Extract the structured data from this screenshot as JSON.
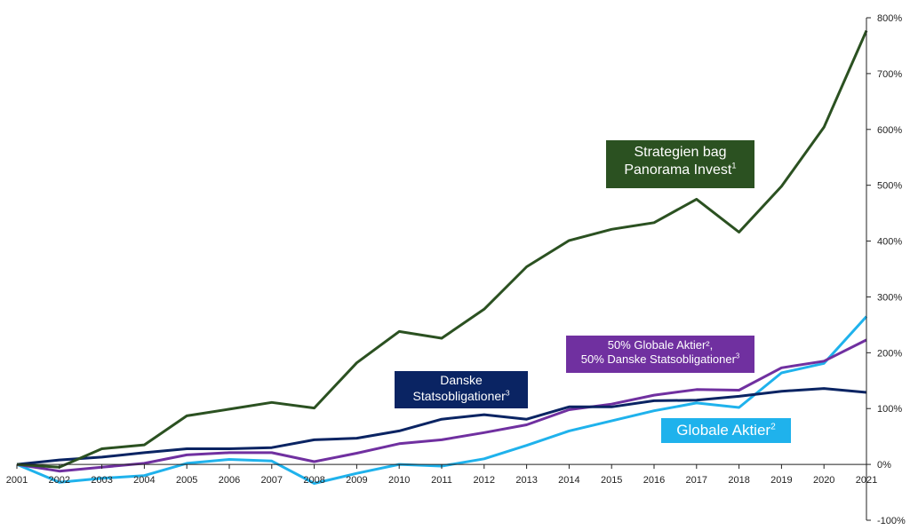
{
  "chart_data": {
    "type": "line",
    "x": [
      "2001",
      "2002",
      "2003",
      "2004",
      "2005",
      "2006",
      "2007",
      "2008",
      "2009",
      "2010",
      "2011",
      "2012",
      "2013",
      "2014",
      "2015",
      "2016",
      "2017",
      "2018",
      "2019",
      "2020",
      "2021"
    ],
    "ylim": [
      -100,
      800
    ],
    "yticks": [
      "-100%",
      "0%",
      "100%",
      "200%",
      "300%",
      "400%",
      "500%",
      "600%",
      "700%",
      "800%"
    ],
    "ytick_values": [
      -100,
      0,
      100,
      200,
      300,
      400,
      500,
      600,
      700,
      800
    ],
    "y_axis_position": "right",
    "grid": false,
    "series": [
      {
        "name": "Strategien bag Panorama Invest",
        "superscript": "1",
        "color": "#2b5121",
        "values": [
          0,
          -5,
          28,
          35,
          87,
          99,
          111,
          101,
          182,
          238,
          226,
          278,
          354,
          401,
          421,
          433,
          475,
          416,
          498,
          604,
          777
        ]
      },
      {
        "name": "Danske Statsobligationer",
        "superscript": "3",
        "color": "#0a2463",
        "values": [
          0,
          8,
          13,
          21,
          28,
          28,
          30,
          44,
          47,
          60,
          81,
          89,
          81,
          103,
          103,
          114,
          115,
          122,
          131,
          136,
          129
        ]
      },
      {
        "name": "50% Globale Aktier², 50% Danske Statsobligationer",
        "superscript": "3",
        "line1": "50% Globale Aktier², ",
        "line2": "50% Danske Statsobligationer",
        "color": "#7030a0",
        "values": [
          0,
          -12,
          -5,
          2,
          17,
          21,
          21,
          5,
          20,
          37,
          44,
          57,
          71,
          98,
          108,
          124,
          134,
          133,
          173,
          185,
          223
        ]
      },
      {
        "name": "Globale Aktier",
        "superscript": "2",
        "color": "#1fb2ec",
        "values": [
          0,
          -32,
          -25,
          -20,
          2,
          9,
          6,
          -34,
          -16,
          0,
          -3,
          10,
          34,
          60,
          78,
          96,
          110,
          102,
          164,
          181,
          265
        ]
      }
    ],
    "labels": {
      "strategy_line1": "Strategien bag",
      "strategy_line2": "Panorama Invest",
      "danske_line1": "Danske",
      "danske_line2": "Statsobligationer"
    }
  }
}
